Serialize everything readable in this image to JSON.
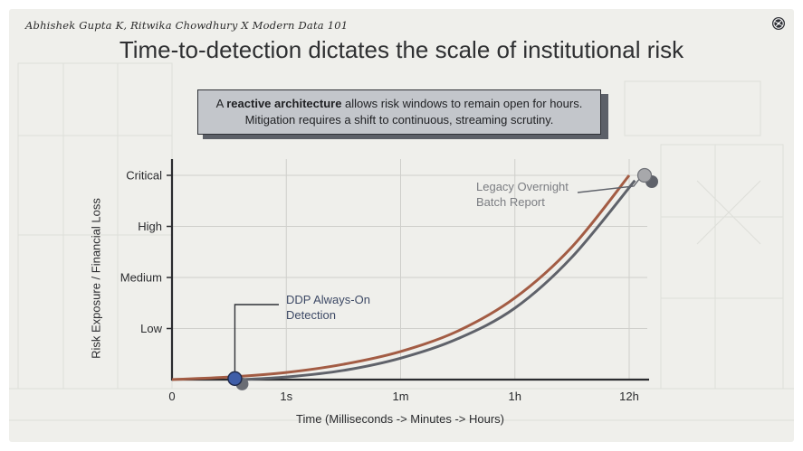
{
  "credit": "Abhishek Gupta K, Ritwika Chowdhury X Modern Data 101",
  "title": "Time-to-detection dictates the scale of institutional risk",
  "callout": {
    "prefix": "A ",
    "bold": "reactive architecture",
    "line1_rest": " allows risk windows to remain open for hours.",
    "line2": "Mitigation requires a shift to continuous, streaming scrutiny."
  },
  "logo_icon": "network-globe-icon",
  "colors": {
    "slide_bg": "#efefeb",
    "reactive_curve": "#a35c44",
    "streaming_curve": "#5f626a",
    "ddp_marker": "#3f5ea8",
    "axis": "#2a2b2e",
    "grid": "#cfcfcb"
  },
  "chart_data": {
    "type": "line",
    "title": "",
    "xlabel": "Time (Milliseconds -> Minutes -> Hours)",
    "ylabel": "Risk Exposure / Financial Loss",
    "x_ticks": [
      "0",
      "1s",
      "1m",
      "1h",
      "12h"
    ],
    "y_ticks": [
      "Low",
      "Medium",
      "High",
      "Critical"
    ],
    "xlim": [
      0,
      4
    ],
    "ylim": [
      0,
      4
    ],
    "grid": true,
    "series": [
      {
        "key": "reactive",
        "x": [
          0,
          0.5,
          1,
          1.5,
          2,
          2.5,
          3,
          3.5,
          4
        ],
        "y": [
          0,
          0.05,
          0.14,
          0.3,
          0.55,
          0.95,
          1.6,
          2.6,
          4.0
        ]
      },
      {
        "key": "streaming",
        "x": [
          0.6,
          1,
          1.5,
          2,
          2.5,
          3,
          3.5,
          4.05
        ],
        "y": [
          0,
          0.05,
          0.18,
          0.42,
          0.8,
          1.4,
          2.4,
          3.9
        ]
      }
    ],
    "annotations": [
      {
        "key": "ddp",
        "label_line1": "DDP Always-On",
        "label_line2": "Detection",
        "x": 0.55,
        "y": 0.02
      },
      {
        "key": "legacy",
        "label_line1": "Legacy Overnight",
        "label_line2": "Batch Report",
        "x": 4.0,
        "y": 4.0
      }
    ]
  }
}
